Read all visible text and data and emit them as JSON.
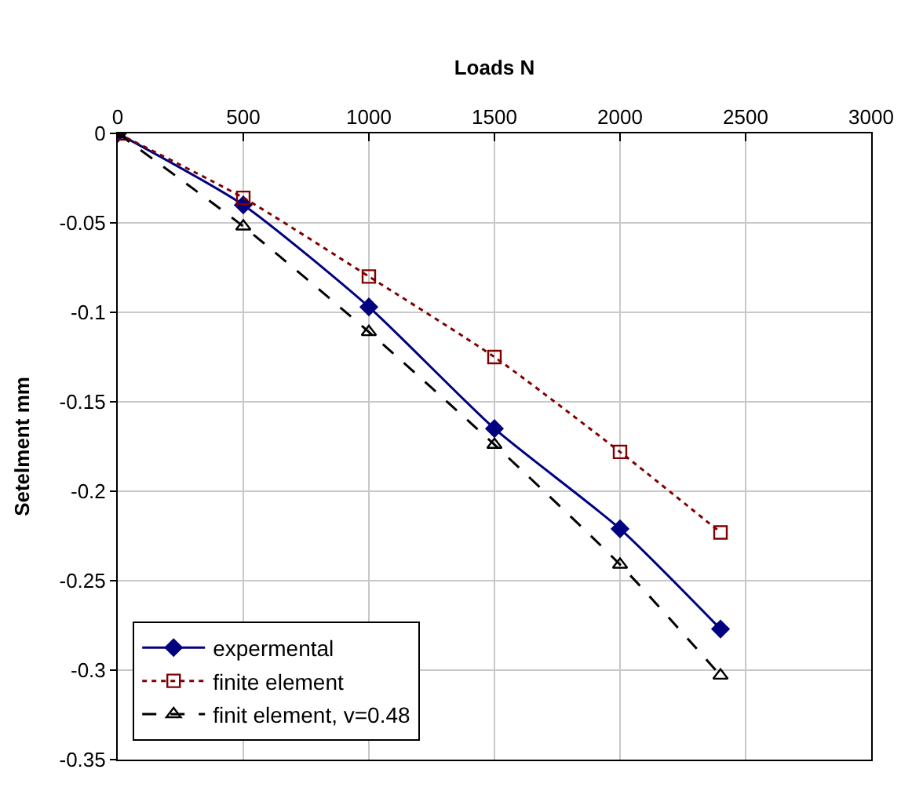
{
  "chart_data": {
    "type": "line",
    "xlabel": "Loads N",
    "ylabel": "Setelment mm",
    "x": [
      0,
      500,
      1000,
      1500,
      2000,
      2400
    ],
    "series": [
      {
        "name": "expermental",
        "color": "#000080",
        "marker": "diamond",
        "line_style": "solid",
        "values": [
          0,
          -0.04,
          -0.097,
          -0.165,
          -0.221,
          -0.277
        ]
      },
      {
        "name": "finite element",
        "color": "#800000",
        "marker": "square",
        "line_style": "dotted",
        "values": [
          0,
          -0.036,
          -0.08,
          -0.125,
          -0.178,
          -0.223
        ]
      },
      {
        "name": "finit element, v=0.48",
        "color": "#000000",
        "marker": "triangle",
        "line_style": "dashed",
        "values": [
          0,
          -0.052,
          -0.111,
          -0.174,
          -0.241,
          -0.303
        ]
      }
    ],
    "xlim": [
      0,
      3000
    ],
    "xticks": [
      0,
      500,
      1000,
      1500,
      2000,
      2500,
      3000
    ],
    "ylim": [
      -0.35,
      0
    ],
    "yticks": [
      0,
      -0.05,
      -0.1,
      -0.15,
      -0.2,
      -0.25,
      -0.3,
      -0.35
    ],
    "grid": true,
    "legend": "bottom left"
  }
}
